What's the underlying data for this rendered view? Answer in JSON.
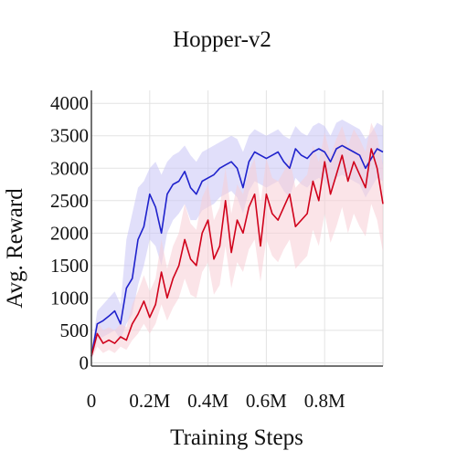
{
  "chart_data": {
    "type": "line",
    "title": "Hopper-v2",
    "xlabel": "Training Steps",
    "ylabel": "Avg. Reward",
    "xlim": [
      0,
      1000000
    ],
    "ylim": [
      -50,
      4200
    ],
    "grid": true,
    "legend": "none",
    "x_ticks": [
      {
        "value": 0,
        "label": "0"
      },
      {
        "value": 200000,
        "label": "0.2M"
      },
      {
        "value": 400000,
        "label": "0.4M"
      },
      {
        "value": 600000,
        "label": "0.6M"
      },
      {
        "value": 800000,
        "label": "0.8M"
      }
    ],
    "y_ticks": [
      {
        "value": 0,
        "label": "0"
      },
      {
        "value": 500,
        "label": "500"
      },
      {
        "value": 1000,
        "label": "1000"
      },
      {
        "value": 1500,
        "label": "1500"
      },
      {
        "value": 2000,
        "label": "2000"
      },
      {
        "value": 2500,
        "label": "2500"
      },
      {
        "value": 3000,
        "label": "3000"
      },
      {
        "value": 3500,
        "label": "3500"
      },
      {
        "value": 4000,
        "label": "4000"
      }
    ],
    "series": [
      {
        "color": "#1f22cc",
        "band_color": "#c9c5f5",
        "x": [
          0,
          20000,
          40000,
          60000,
          80000,
          100000,
          120000,
          140000,
          160000,
          180000,
          200000,
          220000,
          240000,
          260000,
          280000,
          300000,
          320000,
          340000,
          360000,
          380000,
          400000,
          420000,
          440000,
          460000,
          480000,
          500000,
          520000,
          540000,
          560000,
          580000,
          600000,
          620000,
          640000,
          660000,
          680000,
          700000,
          720000,
          740000,
          760000,
          780000,
          800000,
          820000,
          840000,
          860000,
          880000,
          900000,
          920000,
          940000,
          960000,
          980000,
          1000000
        ],
        "values": [
          100,
          600,
          650,
          720,
          800,
          600,
          1150,
          1300,
          1900,
          2100,
          2600,
          2400,
          2000,
          2600,
          2750,
          2800,
          2950,
          2700,
          2600,
          2800,
          2850,
          2900,
          3000,
          3050,
          3100,
          3000,
          2700,
          3100,
          3250,
          3200,
          3150,
          3200,
          3250,
          3100,
          3000,
          3300,
          3200,
          3150,
          3250,
          3300,
          3250,
          3100,
          3300,
          3350,
          3300,
          3250,
          3200,
          3000,
          3150,
          3300,
          3250
        ],
        "lower": [
          50,
          350,
          400,
          450,
          500,
          350,
          600,
          750,
          1200,
          1500,
          1900,
          1800,
          1500,
          2000,
          2200,
          2300,
          2450,
          2200,
          2200,
          2350,
          2400,
          2450,
          2550,
          2600,
          2650,
          2550,
          2300,
          2650,
          2800,
          2750,
          2700,
          2750,
          2800,
          2650,
          2550,
          2850,
          2750,
          2700,
          2800,
          2850,
          2800,
          2650,
          2850,
          2900,
          2850,
          2800,
          2750,
          2550,
          2700,
          2850,
          2800
        ],
        "upper": [
          200,
          800,
          900,
          1000,
          1100,
          900,
          1900,
          2300,
          2700,
          2800,
          3000,
          3100,
          2900,
          3100,
          3200,
          3250,
          3350,
          3200,
          3100,
          3250,
          3300,
          3350,
          3400,
          3450,
          3500,
          3450,
          3250,
          3500,
          3600,
          3550,
          3500,
          3550,
          3600,
          3500,
          3450,
          3650,
          3550,
          3500,
          3650,
          3700,
          3650,
          3500,
          3700,
          3750,
          3700,
          3650,
          3600,
          3450,
          3550,
          3700,
          3650
        ]
      },
      {
        "color": "#d0021b",
        "band_color": "#f7cdd6",
        "x": [
          0,
          20000,
          40000,
          60000,
          80000,
          100000,
          120000,
          140000,
          160000,
          180000,
          200000,
          220000,
          240000,
          260000,
          280000,
          300000,
          320000,
          340000,
          360000,
          380000,
          400000,
          420000,
          440000,
          460000,
          480000,
          500000,
          520000,
          540000,
          560000,
          580000,
          600000,
          620000,
          640000,
          660000,
          680000,
          700000,
          720000,
          740000,
          760000,
          780000,
          800000,
          820000,
          840000,
          860000,
          880000,
          900000,
          920000,
          940000,
          960000,
          980000,
          1000000
        ],
        "values": [
          100,
          450,
          300,
          350,
          300,
          400,
          350,
          600,
          750,
          950,
          700,
          900,
          1400,
          1000,
          1300,
          1500,
          1900,
          1600,
          1500,
          2000,
          2200,
          1600,
          1800,
          2500,
          1700,
          2200,
          2000,
          2400,
          2600,
          1800,
          2600,
          2300,
          2200,
          2400,
          2600,
          2100,
          2200,
          2300,
          2800,
          2500,
          3100,
          2600,
          2900,
          3200,
          2800,
          3100,
          2900,
          2700,
          3300,
          3000,
          2450
        ],
        "lower": [
          50,
          250,
          150,
          200,
          150,
          250,
          200,
          350,
          450,
          600,
          450,
          600,
          900,
          650,
          850,
          1000,
          1300,
          1050,
          1000,
          1400,
          1550,
          1050,
          1200,
          1800,
          1150,
          1550,
          1400,
          1750,
          1900,
          1250,
          1900,
          1650,
          1550,
          1750,
          1900,
          1450,
          1550,
          1650,
          2050,
          1800,
          2300,
          1850,
          2100,
          2400,
          2000,
          2300,
          2100,
          1950,
          2450,
          2200,
          1700
        ],
        "upper": [
          200,
          650,
          500,
          550,
          500,
          600,
          550,
          900,
          1100,
          1350,
          1100,
          1300,
          1900,
          1450,
          1800,
          2000,
          2450,
          2150,
          2050,
          2550,
          2750,
          2200,
          2400,
          3000,
          2300,
          2750,
          2600,
          2950,
          3150,
          2450,
          3150,
          2850,
          2800,
          2950,
          3150,
          2700,
          2800,
          2900,
          3350,
          3100,
          3550,
          3200,
          3450,
          3650,
          3350,
          3600,
          3450,
          3250,
          3700,
          3500,
          3050
        ]
      }
    ]
  }
}
